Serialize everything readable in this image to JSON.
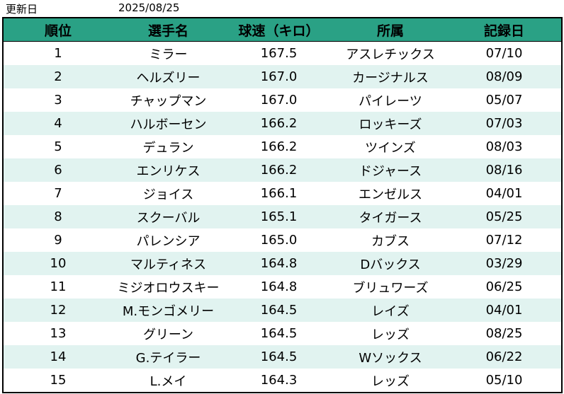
{
  "header": {
    "updated_label": "更新日",
    "updated_date": "2025/08/25"
  },
  "table": {
    "columns": [
      "順位",
      "選手名",
      "球速（キロ）",
      "所属",
      "記録日"
    ],
    "rows": [
      [
        "1",
        "ミラー",
        "167.5",
        "アスレチックス",
        "07/10"
      ],
      [
        "2",
        "ヘルズリー",
        "167.0",
        "カージナルス",
        "08/09"
      ],
      [
        "3",
        "チャップマン",
        "167.0",
        "パイレーツ",
        "05/07"
      ],
      [
        "4",
        "ハルボーセン",
        "166.2",
        "ロッキーズ",
        "07/03"
      ],
      [
        "5",
        "デュラン",
        "166.2",
        "ツインズ",
        "08/03"
      ],
      [
        "6",
        "エンリケス",
        "166.2",
        "ドジャース",
        "08/16"
      ],
      [
        "7",
        "ジョイス",
        "166.1",
        "エンゼルス",
        "04/01"
      ],
      [
        "8",
        "スクーバル",
        "165.1",
        "タイガース",
        "05/25"
      ],
      [
        "9",
        "パレンシア",
        "165.0",
        "カブス",
        "07/12"
      ],
      [
        "10",
        "マルティネス",
        "164.8",
        "Dバックス",
        "03/29"
      ],
      [
        "11",
        "ミジオロウスキー",
        "164.8",
        "ブリュワーズ",
        "06/25"
      ],
      [
        "12",
        "M.モンゴメリー",
        "164.5",
        "レイズ",
        "04/01"
      ],
      [
        "13",
        "グリーン",
        "164.5",
        "レッズ",
        "08/25"
      ],
      [
        "14",
        "G.テイラー",
        "164.5",
        "Wソックス",
        "06/22"
      ],
      [
        "15",
        "L.メイ",
        "164.3",
        "レッズ",
        "05/10"
      ]
    ]
  },
  "colors": {
    "header_bg": "#2aa185",
    "alt_row_bg": "#e1f3f0"
  }
}
